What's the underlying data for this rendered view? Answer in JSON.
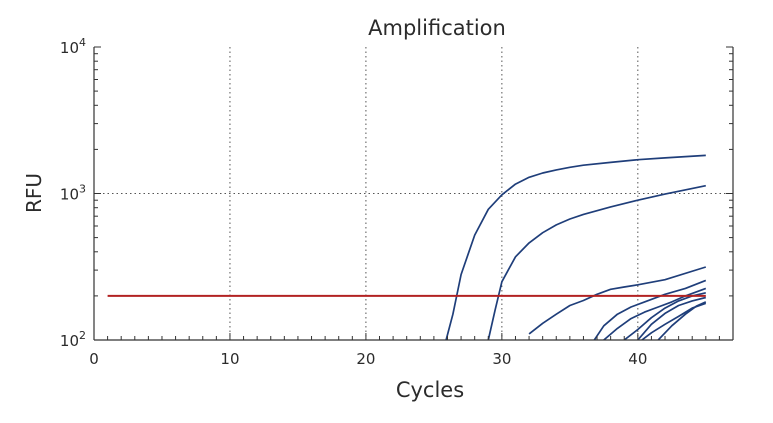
{
  "chart_data": {
    "type": "line",
    "title": "Amplification",
    "xlabel": "Cycles",
    "ylabel": "RFU",
    "x_scale": "linear",
    "y_scale": "log",
    "xlim": [
      0,
      47
    ],
    "ylim": [
      100,
      10000
    ],
    "x_ticks": [
      {
        "value": 0,
        "label": "0"
      },
      {
        "value": 10,
        "label": "10"
      },
      {
        "value": 20,
        "label": "20"
      },
      {
        "value": 30,
        "label": "30"
      },
      {
        "value": 40,
        "label": "40"
      }
    ],
    "y_ticks": [
      {
        "value": 100,
        "base": "10",
        "exp": "2"
      },
      {
        "value": 1000,
        "base": "10",
        "exp": "3"
      },
      {
        "value": 10000,
        "base": "10",
        "exp": "4"
      }
    ],
    "grid": true,
    "grid_style": "dotted",
    "colors": {
      "curves": "#1f3e7a",
      "threshold": "#b22222",
      "axis": "#333333",
      "grid": "#555555"
    },
    "threshold": {
      "y": 200,
      "x_start": 1,
      "x_end": 45
    },
    "series": [
      {
        "points": [
          [
            25.9,
            100
          ],
          [
            26.4,
            150
          ],
          [
            27,
            280
          ],
          [
            28,
            520
          ],
          [
            29,
            780
          ],
          [
            30,
            980
          ],
          [
            31,
            1160
          ],
          [
            32,
            1290
          ],
          [
            33,
            1380
          ],
          [
            34,
            1450
          ],
          [
            35,
            1510
          ],
          [
            36,
            1560
          ],
          [
            38,
            1630
          ],
          [
            40,
            1700
          ],
          [
            42,
            1750
          ],
          [
            45,
            1820
          ]
        ]
      },
      {
        "points": [
          [
            29,
            100
          ],
          [
            29.5,
            160
          ],
          [
            30,
            250
          ],
          [
            31,
            370
          ],
          [
            32,
            460
          ],
          [
            33,
            540
          ],
          [
            34,
            610
          ],
          [
            35,
            670
          ],
          [
            36,
            720
          ],
          [
            38,
            810
          ],
          [
            40,
            900
          ],
          [
            42,
            990
          ],
          [
            45,
            1130
          ]
        ]
      },
      {
        "points": [
          [
            32,
            110
          ],
          [
            33,
            130
          ],
          [
            34,
            150
          ],
          [
            35,
            172
          ],
          [
            36,
            186
          ],
          [
            37,
            205
          ],
          [
            38,
            222
          ],
          [
            39,
            230
          ],
          [
            40,
            238
          ],
          [
            42,
            258
          ],
          [
            45,
            315
          ]
        ]
      },
      {
        "points": [
          [
            36.8,
            100
          ],
          [
            37.5,
            125
          ],
          [
            38.5,
            150
          ],
          [
            39.5,
            168
          ],
          [
            40.5,
            182
          ],
          [
            42,
            205
          ],
          [
            43.5,
            225
          ],
          [
            45,
            255
          ]
        ]
      },
      {
        "points": [
          [
            37.5,
            100
          ],
          [
            38.5,
            120
          ],
          [
            39.5,
            140
          ],
          [
            40.5,
            155
          ],
          [
            41.5,
            168
          ],
          [
            42.5,
            182
          ],
          [
            43.5,
            200
          ],
          [
            45,
            225
          ]
        ]
      },
      {
        "points": [
          [
            39,
            100
          ],
          [
            40,
            118
          ],
          [
            41,
            142
          ],
          [
            42,
            165
          ],
          [
            43,
            185
          ],
          [
            44,
            200
          ],
          [
            45,
            210
          ]
        ]
      },
      {
        "points": [
          [
            40,
            100
          ],
          [
            41,
            128
          ],
          [
            42,
            152
          ],
          [
            43,
            172
          ],
          [
            44,
            185
          ],
          [
            45,
            195
          ]
        ]
      },
      {
        "points": [
          [
            41.5,
            100
          ],
          [
            42.5,
            125
          ],
          [
            43.5,
            150
          ],
          [
            44.3,
            170
          ],
          [
            45,
            182
          ]
        ]
      },
      {
        "points": [
          [
            40.3,
            100
          ],
          [
            41,
            112
          ],
          [
            42,
            128
          ],
          [
            43,
            145
          ],
          [
            44,
            165
          ],
          [
            45,
            178
          ]
        ]
      }
    ]
  }
}
